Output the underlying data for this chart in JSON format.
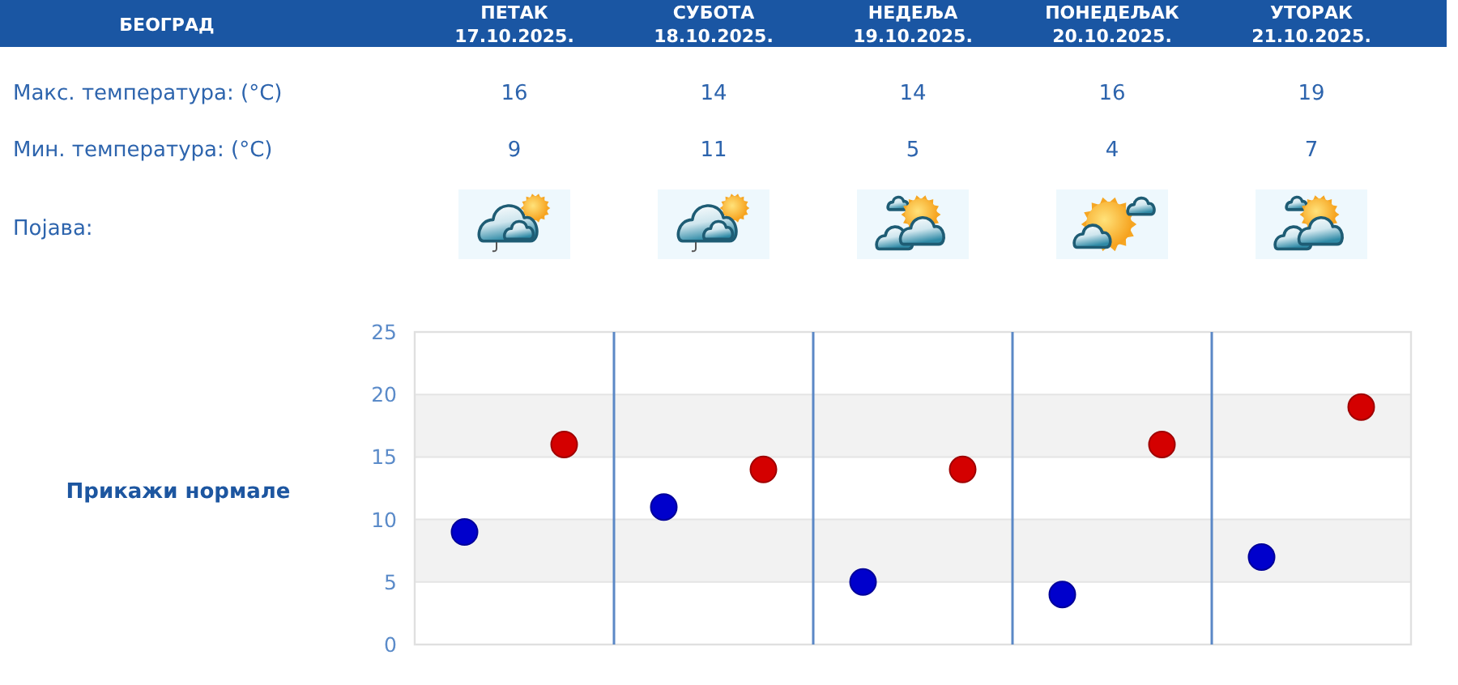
{
  "chart_data": {
    "type": "scatter",
    "title": "БЕОГРАД",
    "categories": [
      null,
      null,
      null,
      null,
      null
    ],
    "series": [
      {
        "color": "#0000cc",
        "values": [
          9,
          11,
          5,
          4,
          7
        ]
      },
      {
        "color": "#d40000",
        "values": [
          16,
          14,
          14,
          16,
          19
        ]
      }
    ],
    "ylim": [
      0,
      25
    ],
    "yticks": [
      0,
      5,
      10,
      15,
      20,
      25
    ],
    "grid": true,
    "bands": [
      {
        "axis": "y",
        "from": 5,
        "to": 10,
        "color": "#f2f2f2"
      },
      {
        "axis": "y",
        "from": 15,
        "to": 20,
        "color": "#f2f2f2"
      }
    ],
    "marker": "circle",
    "data_labels": true,
    "annotations": [
      "ПЕТАК 17.10.2025.",
      "СУБОТА 18.10.2025.",
      "НЕДЕЉА 19.10.2025.",
      "ПОНЕДЕЉАК 20.10.2025.",
      "УТОРАК 21.10.2025.",
      "Макс. температура: (°C)",
      "Мин. температура: (°C)",
      "Појава:",
      "Прикажи нормале"
    ]
  }
}
